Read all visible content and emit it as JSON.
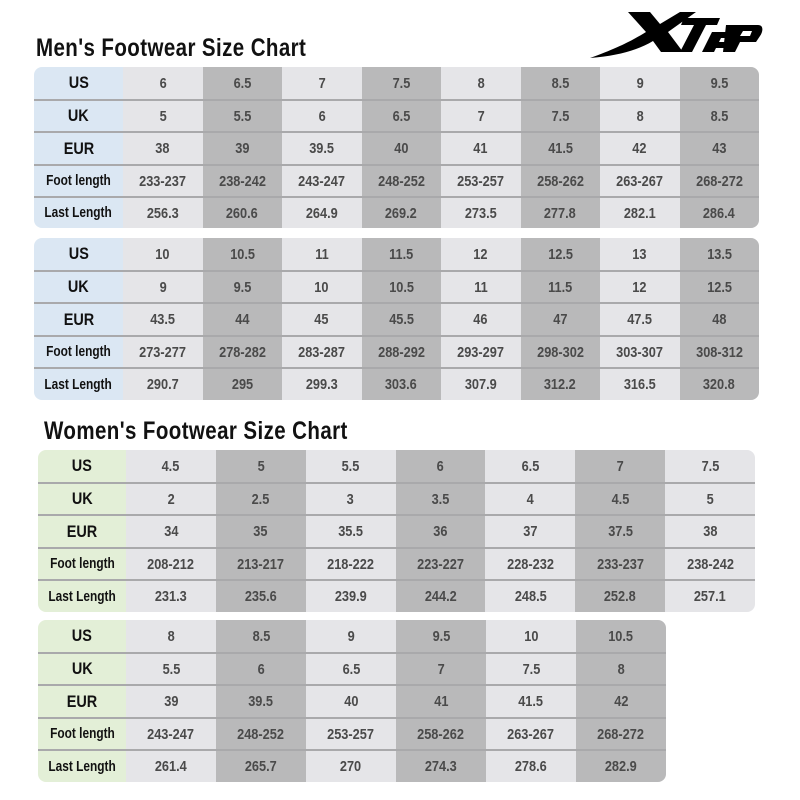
{
  "logo_text": "XTEP",
  "colors": {
    "men_header": "#dbe7f3",
    "women_header": "#e3efd7",
    "column_light": "#e5e5e8",
    "column_dark": "#b9b9ba"
  },
  "men": {
    "title": "Men's Footwear Size Chart",
    "tables": [
      {
        "rows": [
          {
            "label": "US",
            "values": [
              "6",
              "6.5",
              "7",
              "7.5",
              "8",
              "8.5",
              "9",
              "9.5"
            ]
          },
          {
            "label": "UK",
            "values": [
              "5",
              "5.5",
              "6",
              "6.5",
              "7",
              "7.5",
              "8",
              "8.5"
            ]
          },
          {
            "label": "EUR",
            "values": [
              "38",
              "39",
              "39.5",
              "40",
              "41",
              "41.5",
              "42",
              "43"
            ]
          },
          {
            "label": "Foot length",
            "values": [
              "233-237",
              "238-242",
              "243-247",
              "248-252",
              "253-257",
              "258-262",
              "263-267",
              "268-272"
            ]
          },
          {
            "label": "Last Length",
            "values": [
              "256.3",
              "260.6",
              "264.9",
              "269.2",
              "273.5",
              "277.8",
              "282.1",
              "286.4"
            ]
          }
        ]
      },
      {
        "rows": [
          {
            "label": "US",
            "values": [
              "10",
              "10.5",
              "11",
              "11.5",
              "12",
              "12.5",
              "13",
              "13.5"
            ]
          },
          {
            "label": "UK",
            "values": [
              "9",
              "9.5",
              "10",
              "10.5",
              "11",
              "11.5",
              "12",
              "12.5"
            ]
          },
          {
            "label": "EUR",
            "values": [
              "43.5",
              "44",
              "45",
              "45.5",
              "46",
              "47",
              "47.5",
              "48"
            ]
          },
          {
            "label": "Foot length",
            "values": [
              "273-277",
              "278-282",
              "283-287",
              "288-292",
              "293-297",
              "298-302",
              "303-307",
              "308-312"
            ]
          },
          {
            "label": "Last Length",
            "values": [
              "290.7",
              "295",
              "299.3",
              "303.6",
              "307.9",
              "312.2",
              "316.5",
              "320.8"
            ]
          }
        ]
      }
    ]
  },
  "women": {
    "title": "Women's Footwear Size Chart",
    "tables": [
      {
        "rows": [
          {
            "label": "US",
            "values": [
              "4.5",
              "5",
              "5.5",
              "6",
              "6.5",
              "7",
              "7.5"
            ]
          },
          {
            "label": "UK",
            "values": [
              "2",
              "2.5",
              "3",
              "3.5",
              "4",
              "4.5",
              "5"
            ]
          },
          {
            "label": "EUR",
            "values": [
              "34",
              "35",
              "35.5",
              "36",
              "37",
              "37.5",
              "38"
            ]
          },
          {
            "label": "Foot length",
            "values": [
              "208-212",
              "213-217",
              "218-222",
              "223-227",
              "228-232",
              "233-237",
              "238-242"
            ]
          },
          {
            "label": "Last Length",
            "values": [
              "231.3",
              "235.6",
              "239.9",
              "244.2",
              "248.5",
              "252.8",
              "257.1"
            ]
          }
        ]
      },
      {
        "rows": [
          {
            "label": "US",
            "values": [
              "8",
              "8.5",
              "9",
              "9.5",
              "10",
              "10.5"
            ]
          },
          {
            "label": "UK",
            "values": [
              "5.5",
              "6",
              "6.5",
              "7",
              "7.5",
              "8"
            ]
          },
          {
            "label": "EUR",
            "values": [
              "39",
              "39.5",
              "40",
              "41",
              "41.5",
              "42"
            ]
          },
          {
            "label": "Foot length",
            "values": [
              "243-247",
              "248-252",
              "253-257",
              "258-262",
              "263-267",
              "268-272"
            ]
          },
          {
            "label": "Last Length",
            "values": [
              "261.4",
              "265.7",
              "270",
              "274.3",
              "278.6",
              "282.9"
            ]
          }
        ]
      }
    ]
  }
}
